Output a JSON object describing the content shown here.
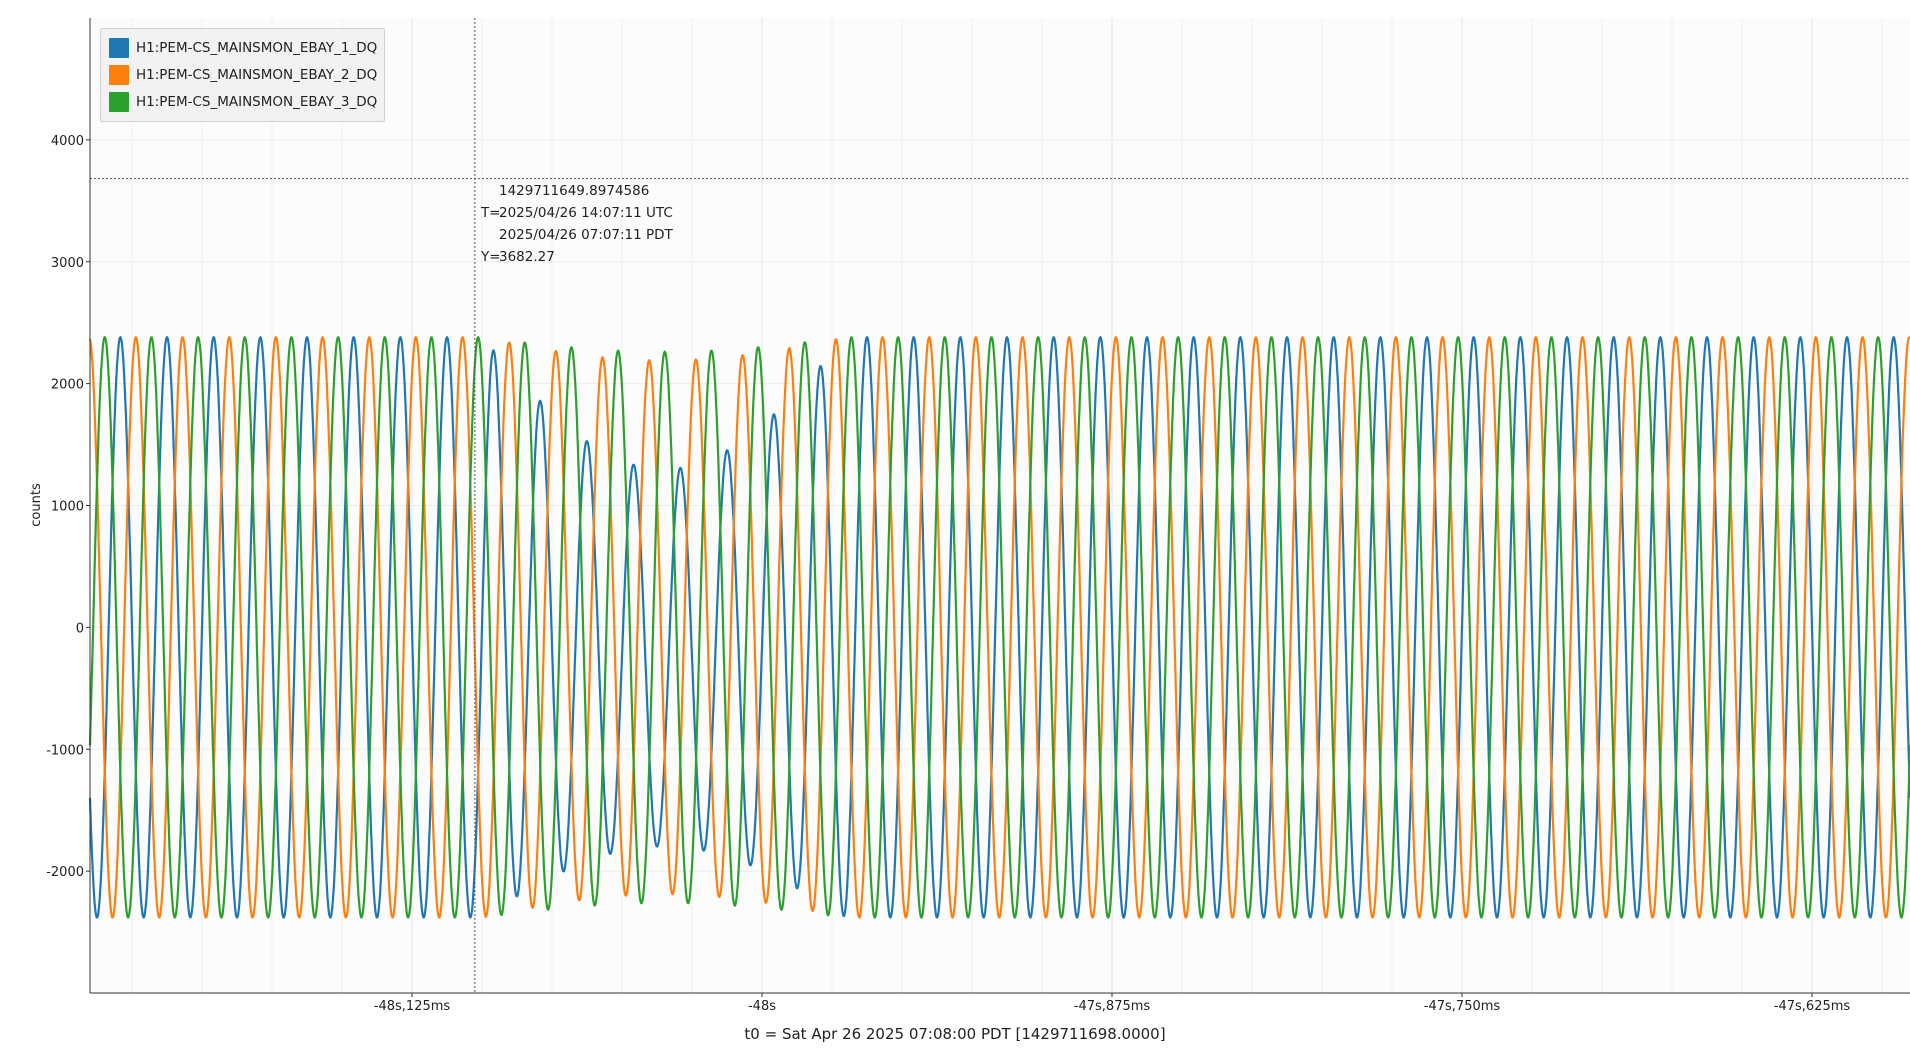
{
  "chart_data": {
    "type": "line",
    "title": "",
    "xlabel": "t0 = Sat Apr 26 2025 07:08:00 PDT [1429711698.0000]",
    "ylabel": "counts",
    "xlim_s": [
      -48.24,
      -47.59
    ],
    "ylim": [
      -3000,
      5000
    ],
    "y_ticks": [
      -2000,
      -1000,
      0,
      1000,
      2000,
      3000,
      4000
    ],
    "y_tick_labels": [
      "-2000",
      "-1000",
      "0",
      "1000",
      "2000",
      "3000",
      "4000"
    ],
    "x_ticks_s": [
      -48.125,
      -48.0,
      -47.875,
      -47.75,
      -47.625
    ],
    "x_tick_labels": [
      "-48s,125ms",
      "-48s",
      "-47s,875ms",
      "-47s,750ms",
      "-47s,625ms"
    ],
    "grid": true,
    "legend_position": "top-left",
    "series": [
      {
        "name": "H1:PEM-CS_MAINSMON_EBAY_1_DQ",
        "color": "#1f77b4",
        "amplitude": 2380,
        "phase_deg": 0
      },
      {
        "name": "H1:PEM-CS_MAINSMON_EBAY_2_DQ",
        "color": "#ff7f0e",
        "amplitude": 2380,
        "phase_deg": -120
      },
      {
        "name": "H1:PEM-CS_MAINSMON_EBAY_3_DQ",
        "color": "#2ca02c",
        "amplitude": 2380,
        "phase_deg": 120
      }
    ],
    "frequency_hz": 60,
    "disturbance_window_s": [
      -48.1,
      -47.97
    ],
    "cursor": {
      "x_s": -48.1025414,
      "y": 3682.27,
      "gps_label": "1429711649.8974586",
      "t_prefix": "T=",
      "utc_label": "2025/04/26 14:07:11 UTC",
      "local_label": "2025/04/26 07:07:11 PDT",
      "y_prefix": "Y=",
      "y_label": "3682.27"
    }
  }
}
